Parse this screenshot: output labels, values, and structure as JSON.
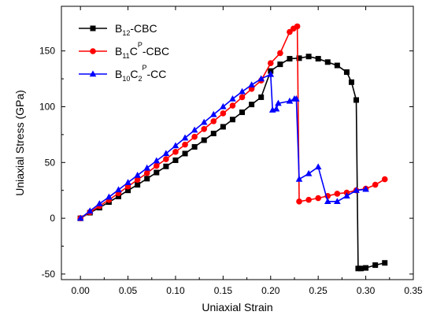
{
  "chart_data": {
    "type": "line",
    "xlabel": "Uniaxial Strain",
    "ylabel": "Uniaxial Stress (GPa)",
    "xlim": [
      -0.02,
      0.35
    ],
    "ylim": [
      -55,
      190
    ],
    "x_ticks": [
      0.0,
      0.05,
      0.1,
      0.15,
      0.2,
      0.25,
      0.3,
      0.35
    ],
    "x_tick_labels": [
      "0.00",
      "0.05",
      "0.10",
      "0.15",
      "0.20",
      "0.25",
      "0.30",
      "0.35"
    ],
    "y_ticks": [
      -50,
      0,
      50,
      100,
      150
    ],
    "y_tick_labels": [
      "-50",
      "0",
      "50",
      "100",
      "150"
    ],
    "grid": false,
    "legend_position": "top-left",
    "series": [
      {
        "name": "B12-CBC",
        "legend": {
          "parts": [
            {
              "t": "B"
            },
            {
              "t": "12",
              "sub": true
            },
            {
              "t": "-CBC"
            }
          ]
        },
        "color": "#000000",
        "marker": "square",
        "points": [
          [
            0.0,
            0
          ],
          [
            0.01,
            5
          ],
          [
            0.02,
            9.5
          ],
          [
            0.03,
            14.5
          ],
          [
            0.04,
            19.5
          ],
          [
            0.05,
            25
          ],
          [
            0.06,
            30
          ],
          [
            0.07,
            35.5
          ],
          [
            0.08,
            41
          ],
          [
            0.09,
            46.5
          ],
          [
            0.1,
            52
          ],
          [
            0.11,
            58
          ],
          [
            0.12,
            64
          ],
          [
            0.13,
            70
          ],
          [
            0.14,
            76
          ],
          [
            0.15,
            82
          ],
          [
            0.16,
            88.5
          ],
          [
            0.17,
            95
          ],
          [
            0.18,
            102
          ],
          [
            0.19,
            108.5
          ],
          [
            0.2,
            132
          ],
          [
            0.21,
            138
          ],
          [
            0.22,
            143
          ],
          [
            0.23,
            143.5
          ],
          [
            0.24,
            145
          ],
          [
            0.25,
            143
          ],
          [
            0.26,
            140
          ],
          [
            0.27,
            137
          ],
          [
            0.28,
            131
          ],
          [
            0.285,
            122
          ],
          [
            0.29,
            106
          ],
          [
            0.292,
            -45
          ],
          [
            0.295,
            -45
          ],
          [
            0.3,
            -44.5
          ],
          [
            0.31,
            -42
          ],
          [
            0.32,
            -40
          ]
        ]
      },
      {
        "name": "B11CP-CBC",
        "legend": {
          "parts": [
            {
              "t": "B"
            },
            {
              "t": "11",
              "sub": true
            },
            {
              "t": "C"
            },
            {
              "t": "P",
              "sup": true
            },
            {
              "t": "-CBC"
            }
          ]
        },
        "color": "#ff0000",
        "marker": "circle",
        "points": [
          [
            0.0,
            0
          ],
          [
            0.01,
            5.5
          ],
          [
            0.02,
            11
          ],
          [
            0.03,
            16.5
          ],
          [
            0.04,
            22.5
          ],
          [
            0.05,
            28.5
          ],
          [
            0.06,
            34.5
          ],
          [
            0.07,
            40.5
          ],
          [
            0.08,
            47
          ],
          [
            0.09,
            53
          ],
          [
            0.1,
            59.5
          ],
          [
            0.11,
            66
          ],
          [
            0.12,
            73
          ],
          [
            0.13,
            80
          ],
          [
            0.14,
            87
          ],
          [
            0.15,
            94
          ],
          [
            0.16,
            101
          ],
          [
            0.17,
            108.5
          ],
          [
            0.18,
            116
          ],
          [
            0.19,
            123.5
          ],
          [
            0.2,
            139
          ],
          [
            0.21,
            148
          ],
          [
            0.22,
            167
          ],
          [
            0.224,
            170
          ],
          [
            0.228,
            172
          ],
          [
            0.23,
            15
          ],
          [
            0.24,
            16.5
          ],
          [
            0.25,
            18
          ],
          [
            0.26,
            20
          ],
          [
            0.27,
            22
          ],
          [
            0.28,
            23
          ],
          [
            0.29,
            25
          ],
          [
            0.3,
            26.5
          ],
          [
            0.31,
            30
          ],
          [
            0.32,
            35
          ]
        ]
      },
      {
        "name": "B10C2P-CC",
        "legend": {
          "parts": [
            {
              "t": "B"
            },
            {
              "t": "10",
              "sub": true
            },
            {
              "t": "C"
            },
            {
              "t": "2",
              "sub": true
            },
            {
              "t": "P",
              "sup": true
            },
            {
              "t": "-CC"
            }
          ]
        },
        "color": "#0000ff",
        "marker": "triangle",
        "points": [
          [
            0.0,
            0
          ],
          [
            0.01,
            6.5
          ],
          [
            0.02,
            13
          ],
          [
            0.03,
            19
          ],
          [
            0.04,
            25.5
          ],
          [
            0.05,
            32
          ],
          [
            0.06,
            38.5
          ],
          [
            0.07,
            45
          ],
          [
            0.08,
            51.5
          ],
          [
            0.09,
            58
          ],
          [
            0.1,
            65
          ],
          [
            0.11,
            72
          ],
          [
            0.12,
            79
          ],
          [
            0.13,
            86
          ],
          [
            0.14,
            93
          ],
          [
            0.15,
            100
          ],
          [
            0.16,
            107
          ],
          [
            0.17,
            113.5
          ],
          [
            0.18,
            119.5
          ],
          [
            0.19,
            125
          ],
          [
            0.2,
            129
          ],
          [
            0.202,
            97
          ],
          [
            0.206,
            98
          ],
          [
            0.208,
            103
          ],
          [
            0.22,
            105
          ],
          [
            0.225,
            107
          ],
          [
            0.227,
            107
          ],
          [
            0.23,
            35
          ],
          [
            0.24,
            40
          ],
          [
            0.25,
            46
          ],
          [
            0.26,
            15
          ],
          [
            0.27,
            15
          ],
          [
            0.28,
            20
          ],
          [
            0.29,
            25
          ],
          [
            0.3,
            26
          ]
        ]
      }
    ]
  }
}
